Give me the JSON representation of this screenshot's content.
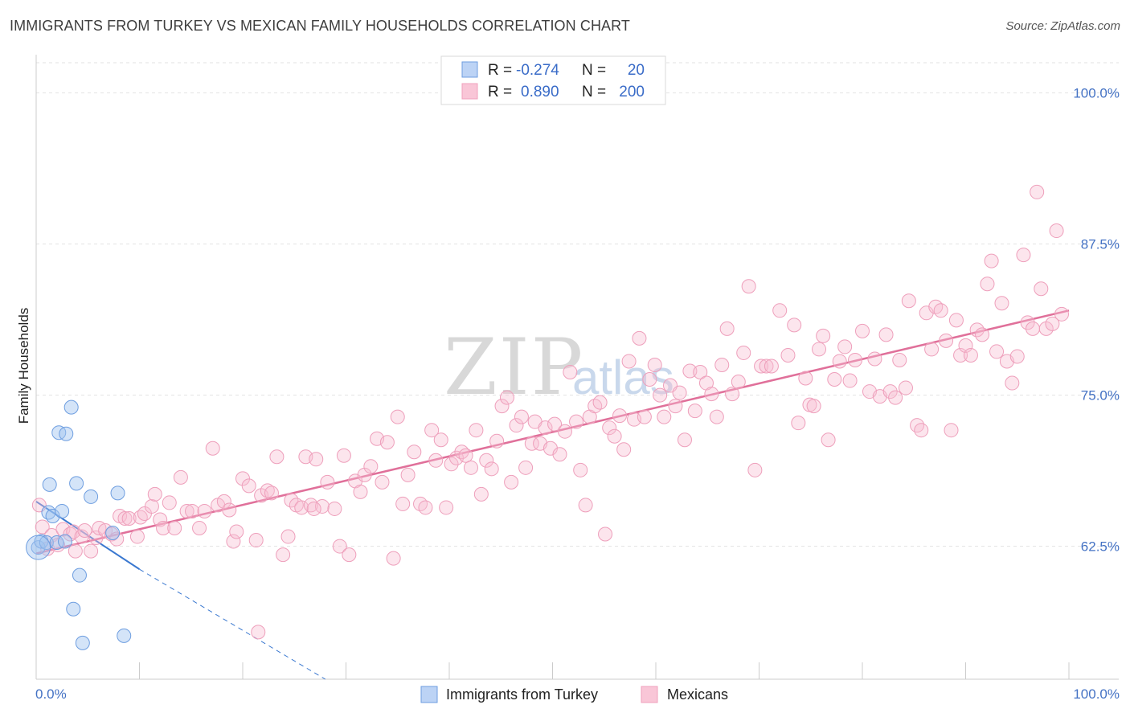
{
  "header": {
    "title": "IMMIGRANTS FROM TURKEY VS MEXICAN FAMILY HOUSEHOLDS CORRELATION CHART",
    "source": "Source: ZipAtlas.com"
  },
  "watermark": {
    "zip": "ZIP",
    "atlas": "atlas"
  },
  "colors": {
    "turkey": "#6e9ee0",
    "mexicans": "#f0a0bc",
    "turkey_line": "#3a78d0",
    "mexicans_line": "#e0709a",
    "tick": "#4472c4"
  },
  "chart_data": {
    "type": "scatter",
    "title": "IMMIGRANTS FROM TURKEY VS MEXICAN FAMILY HOUSEHOLDS CORRELATION CHART",
    "xlabel": "",
    "ylabel": "Family Households",
    "xlim": [
      0,
      100
    ],
    "ylim": [
      51.5,
      102.5
    ],
    "x_tick_labels": {
      "left": "0.0%",
      "right": "100.0%"
    },
    "y_ticks": [
      {
        "value": 62.5,
        "label": "62.5%"
      },
      {
        "value": 75.0,
        "label": "75.0%"
      },
      {
        "value": 87.5,
        "label": "87.5%"
      },
      {
        "value": 100.0,
        "label": "100.0%"
      }
    ],
    "legend": {
      "rows": [
        {
          "r_label": "R =",
          "r_value": "-0.274",
          "n_label": "N =",
          "n_value": "20"
        },
        {
          "r_label": "R =",
          "r_value": "0.890",
          "n_label": "N =",
          "n_value": "200"
        }
      ]
    },
    "series": [
      {
        "name": "Immigrants from Turkey",
        "trend": {
          "x0": 0,
          "y0": 66.2,
          "x1": 10,
          "y1": 60.6,
          "dash_to_x": 28,
          "dash_to_y": 51.5
        },
        "points": [
          [
            0.2,
            62.4
          ],
          [
            0.5,
            62.9
          ],
          [
            1.0,
            62.8
          ],
          [
            1.2,
            65.3
          ],
          [
            1.3,
            67.6
          ],
          [
            1.6,
            65.0
          ],
          [
            2.0,
            62.8
          ],
          [
            2.2,
            71.9
          ],
          [
            2.5,
            65.4
          ],
          [
            2.8,
            62.9
          ],
          [
            2.9,
            71.8
          ],
          [
            3.4,
            74.0
          ],
          [
            3.6,
            57.3
          ],
          [
            3.9,
            67.7
          ],
          [
            4.2,
            60.1
          ],
          [
            4.5,
            54.5
          ],
          [
            5.3,
            66.6
          ],
          [
            7.4,
            63.6
          ],
          [
            7.9,
            66.9
          ],
          [
            8.5,
            55.1
          ]
        ]
      },
      {
        "name": "Mexicans",
        "trend": {
          "x0": 0,
          "y0": 61.9,
          "x1": 100,
          "y1": 82.0
        },
        "points": [
          [
            0.3,
            65.9
          ],
          [
            0.6,
            64.1
          ],
          [
            1.1,
            62.3
          ],
          [
            1.5,
            63.4
          ],
          [
            2.1,
            62.6
          ],
          [
            2.6,
            63.9
          ],
          [
            3.3,
            63.5
          ],
          [
            3.6,
            63.7
          ],
          [
            3.8,
            62.1
          ],
          [
            4.4,
            63.3
          ],
          [
            4.7,
            63.8
          ],
          [
            5.3,
            62.1
          ],
          [
            5.8,
            63.2
          ],
          [
            6.1,
            64.0
          ],
          [
            6.7,
            63.8
          ],
          [
            7.3,
            63.5
          ],
          [
            7.8,
            63.1
          ],
          [
            8.1,
            65.0
          ],
          [
            8.6,
            64.8
          ],
          [
            9.0,
            64.8
          ],
          [
            9.8,
            63.3
          ],
          [
            10.1,
            64.9
          ],
          [
            10.5,
            65.2
          ],
          [
            11.2,
            65.8
          ],
          [
            11.5,
            66.8
          ],
          [
            12.0,
            64.7
          ],
          [
            12.3,
            64.0
          ],
          [
            12.9,
            66.1
          ],
          [
            13.4,
            64.0
          ],
          [
            14.0,
            68.2
          ],
          [
            14.6,
            65.4
          ],
          [
            15.1,
            65.4
          ],
          [
            15.8,
            64.0
          ],
          [
            16.3,
            65.4
          ],
          [
            17.1,
            70.6
          ],
          [
            17.6,
            65.9
          ],
          [
            18.2,
            66.2
          ],
          [
            18.7,
            65.5
          ],
          [
            19.1,
            62.9
          ],
          [
            19.4,
            63.7
          ],
          [
            20.0,
            68.1
          ],
          [
            20.6,
            67.5
          ],
          [
            21.3,
            63.0
          ],
          [
            21.8,
            66.7
          ],
          [
            22.4,
            67.1
          ],
          [
            22.8,
            66.9
          ],
          [
            23.3,
            69.9
          ],
          [
            23.9,
            61.8
          ],
          [
            24.4,
            63.3
          ],
          [
            24.7,
            66.3
          ],
          [
            25.2,
            65.9
          ],
          [
            25.7,
            65.7
          ],
          [
            26.1,
            69.9
          ],
          [
            26.6,
            65.9
          ],
          [
            27.1,
            69.7
          ],
          [
            27.7,
            65.8
          ],
          [
            28.2,
            67.8
          ],
          [
            28.9,
            65.6
          ],
          [
            29.4,
            62.5
          ],
          [
            29.8,
            70.0
          ],
          [
            30.3,
            61.8
          ],
          [
            30.9,
            67.9
          ],
          [
            31.4,
            67.0
          ],
          [
            31.8,
            68.4
          ],
          [
            32.4,
            69.1
          ],
          [
            33.0,
            71.4
          ],
          [
            33.5,
            67.8
          ],
          [
            34.0,
            71.1
          ],
          [
            34.6,
            61.5
          ],
          [
            35.0,
            73.2
          ],
          [
            35.5,
            66.0
          ],
          [
            36.0,
            68.4
          ],
          [
            36.6,
            70.3
          ],
          [
            37.2,
            66.0
          ],
          [
            37.7,
            65.7
          ],
          [
            38.3,
            72.1
          ],
          [
            38.7,
            69.6
          ],
          [
            39.2,
            71.3
          ],
          [
            39.7,
            65.7
          ],
          [
            40.2,
            69.3
          ],
          [
            40.7,
            69.8
          ],
          [
            41.2,
            70.3
          ],
          [
            41.6,
            70.0
          ],
          [
            42.1,
            69.0
          ],
          [
            42.6,
            72.1
          ],
          [
            43.1,
            66.8
          ],
          [
            43.6,
            69.6
          ],
          [
            44.1,
            68.9
          ],
          [
            44.6,
            71.2
          ],
          [
            45.1,
            74.1
          ],
          [
            45.6,
            74.8
          ],
          [
            46.0,
            67.8
          ],
          [
            46.5,
            72.5
          ],
          [
            47.0,
            73.2
          ],
          [
            47.4,
            69.0
          ],
          [
            48.0,
            71.0
          ],
          [
            48.3,
            72.8
          ],
          [
            48.8,
            71.0
          ],
          [
            49.3,
            72.3
          ],
          [
            49.8,
            70.6
          ],
          [
            50.2,
            72.6
          ],
          [
            50.7,
            70.1
          ],
          [
            51.2,
            72.0
          ],
          [
            51.7,
            76.9
          ],
          [
            52.3,
            72.8
          ],
          [
            52.7,
            68.8
          ],
          [
            53.2,
            65.9
          ],
          [
            53.6,
            73.2
          ],
          [
            54.1,
            74.1
          ],
          [
            54.6,
            74.4
          ],
          [
            55.1,
            63.5
          ],
          [
            55.5,
            72.3
          ],
          [
            56.0,
            71.6
          ],
          [
            56.5,
            73.3
          ],
          [
            56.9,
            70.5
          ],
          [
            57.4,
            77.8
          ],
          [
            57.9,
            73.0
          ],
          [
            58.4,
            79.7
          ],
          [
            58.9,
            73.2
          ],
          [
            59.4,
            76.3
          ],
          [
            59.9,
            77.5
          ],
          [
            60.4,
            75.0
          ],
          [
            60.8,
            73.2
          ],
          [
            61.4,
            75.8
          ],
          [
            61.9,
            74.1
          ],
          [
            62.3,
            75.2
          ],
          [
            62.8,
            71.3
          ],
          [
            63.3,
            77.0
          ],
          [
            63.8,
            73.7
          ],
          [
            64.3,
            76.9
          ],
          [
            64.9,
            76.0
          ],
          [
            65.4,
            75.1
          ],
          [
            65.9,
            73.2
          ],
          [
            66.4,
            77.5
          ],
          [
            66.9,
            80.5
          ],
          [
            67.4,
            75.1
          ],
          [
            68.0,
            76.1
          ],
          [
            68.5,
            78.5
          ],
          [
            69.0,
            84.0
          ],
          [
            69.6,
            68.8
          ],
          [
            70.2,
            77.4
          ],
          [
            70.7,
            77.4
          ],
          [
            71.2,
            77.4
          ],
          [
            72.0,
            82.0
          ],
          [
            72.8,
            78.3
          ],
          [
            73.4,
            80.8
          ],
          [
            73.8,
            72.7
          ],
          [
            74.5,
            76.4
          ],
          [
            74.9,
            74.2
          ],
          [
            75.3,
            74.1
          ],
          [
            75.8,
            78.8
          ],
          [
            76.2,
            79.9
          ],
          [
            76.7,
            71.3
          ],
          [
            77.3,
            76.3
          ],
          [
            77.8,
            77.8
          ],
          [
            78.3,
            79.0
          ],
          [
            78.8,
            76.2
          ],
          [
            79.3,
            77.9
          ],
          [
            80.0,
            80.3
          ],
          [
            80.7,
            75.3
          ],
          [
            81.2,
            78.0
          ],
          [
            81.7,
            74.9
          ],
          [
            82.3,
            80.0
          ],
          [
            82.7,
            75.3
          ],
          [
            83.2,
            74.8
          ],
          [
            83.6,
            77.9
          ],
          [
            84.2,
            75.6
          ],
          [
            84.5,
            82.8
          ],
          [
            85.3,
            72.5
          ],
          [
            85.7,
            72.1
          ],
          [
            86.2,
            81.8
          ],
          [
            86.7,
            78.8
          ],
          [
            87.1,
            82.3
          ],
          [
            87.6,
            82.0
          ],
          [
            88.1,
            79.5
          ],
          [
            88.6,
            72.1
          ],
          [
            89.1,
            81.2
          ],
          [
            89.5,
            78.3
          ],
          [
            90.0,
            79.1
          ],
          [
            90.5,
            78.3
          ],
          [
            91.1,
            80.4
          ],
          [
            91.6,
            80.0
          ],
          [
            92.1,
            84.2
          ],
          [
            92.5,
            86.1
          ],
          [
            93.0,
            78.6
          ],
          [
            93.5,
            82.6
          ],
          [
            94.0,
            77.8
          ],
          [
            94.5,
            76.0
          ],
          [
            95.0,
            78.2
          ],
          [
            95.6,
            86.6
          ],
          [
            96.0,
            81.0
          ],
          [
            96.5,
            80.5
          ],
          [
            96.9,
            91.8
          ],
          [
            97.3,
            83.8
          ],
          [
            97.8,
            80.5
          ],
          [
            98.4,
            80.9
          ],
          [
            98.8,
            88.6
          ],
          [
            99.3,
            81.7
          ],
          [
            26.9,
            65.6
          ],
          [
            21.5,
            55.4
          ]
        ]
      }
    ]
  },
  "bottom_legend": {
    "items": [
      {
        "label": "Immigrants from Turkey"
      },
      {
        "label": "Mexicans"
      }
    ]
  }
}
